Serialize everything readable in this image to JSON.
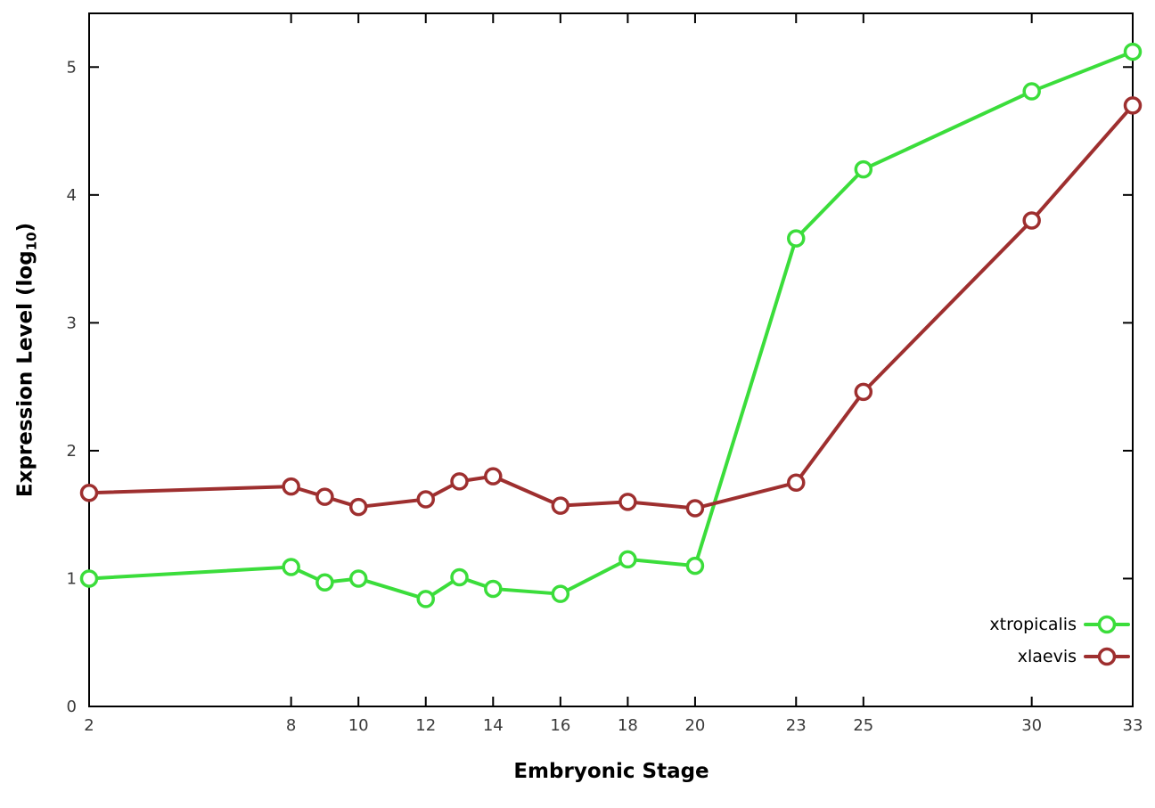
{
  "chart_data": {
    "type": "line",
    "title": "",
    "xlabel": "Embryonic Stage",
    "ylabel_prefix": "Expression Level (log",
    "ylabel_sub": "10",
    "ylabel_suffix": ")",
    "x": [
      2,
      8,
      9,
      10,
      12,
      13,
      14,
      16,
      18,
      20,
      23,
      25,
      30,
      33
    ],
    "series": [
      {
        "name": "xtropicalis",
        "color": "#3bdd3b",
        "values": [
          1.0,
          1.09,
          0.97,
          1.0,
          0.84,
          1.01,
          0.92,
          0.88,
          1.15,
          1.1,
          3.66,
          4.2,
          4.81,
          5.12
        ]
      },
      {
        "name": "xlaevis",
        "color": "#9e2f2f",
        "values": [
          1.67,
          1.72,
          1.64,
          1.56,
          1.62,
          1.76,
          1.8,
          1.57,
          1.6,
          1.55,
          1.75,
          2.46,
          3.8,
          4.7
        ]
      }
    ],
    "xticks": [
      2,
      8,
      10,
      12,
      14,
      16,
      18,
      20,
      23,
      25,
      30,
      33
    ],
    "yticks": [
      0,
      1,
      2,
      3,
      4,
      5
    ],
    "xlim": [
      2,
      33
    ],
    "ylim": [
      0,
      5.42
    ],
    "grid": false,
    "legend_position": "bottom-right",
    "axis_color": "#000000",
    "tick_label_color": "#3a3a3a",
    "background": "#ffffff",
    "line_width": 4,
    "marker": "open-circle",
    "marker_radius": 8.5,
    "marker_stroke_width": 3.5
  }
}
